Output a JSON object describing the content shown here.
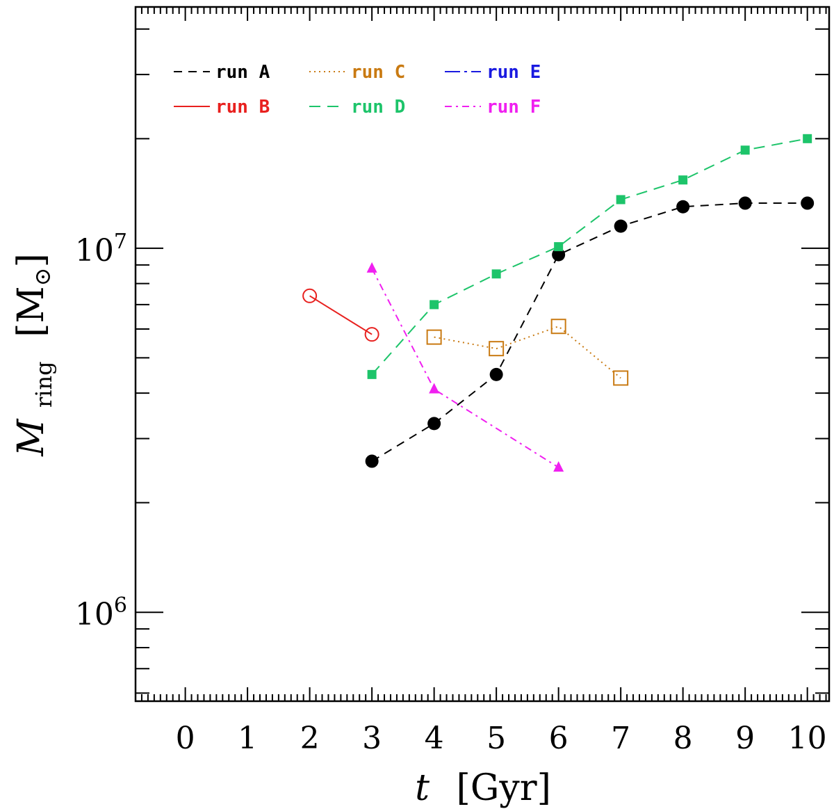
{
  "chart_data": {
    "type": "line",
    "xlabel": {
      "var": "t",
      "unit": "[Gyr]"
    },
    "ylabel": {
      "var": "M",
      "sub": "ring",
      "unit": "M",
      "unit_symbol": "⊙"
    },
    "xlim": [
      -0.8,
      10.35
    ],
    "ylim": [
      570000,
      46000000
    ],
    "yscale": "log",
    "xticks": [
      0,
      1,
      2,
      3,
      4,
      5,
      6,
      7,
      8,
      9,
      10
    ],
    "xtick_labels": [
      "0",
      "1",
      "2",
      "3",
      "4",
      "5",
      "6",
      "7",
      "8",
      "9",
      "10"
    ],
    "yticks": [
      1000000,
      10000000
    ],
    "ytick_labels": [
      {
        "base": "10",
        "exp": "6"
      },
      {
        "base": "10",
        "exp": "7"
      }
    ],
    "legend_position": "top-left",
    "series": [
      {
        "name": "run A",
        "color": "#000000",
        "dash": "12,9",
        "marker": "filled-circle",
        "x": [
          3,
          4,
          5,
          6,
          7,
          8,
          9,
          10
        ],
        "y": [
          2600000,
          3300000,
          4500000,
          9600000,
          11500000,
          13000000,
          13300000,
          13300000
        ]
      },
      {
        "name": "run B",
        "color": "#e8201e",
        "dash": "",
        "marker": "open-circle",
        "x": [
          2,
          3
        ],
        "y": [
          7400000,
          5800000
        ]
      },
      {
        "name": "run C",
        "color": "#c97a12",
        "dash": "2,5",
        "marker": "open-square",
        "x": [
          4,
          5,
          6,
          7
        ],
        "y": [
          5700000,
          5300000,
          6100000,
          4400000
        ]
      },
      {
        "name": "run D",
        "color": "#1dc46a",
        "dash": "16,10",
        "marker": "filled-square",
        "x": [
          3,
          4,
          5,
          6,
          7,
          8,
          9,
          10
        ],
        "y": [
          4500000,
          7000000,
          8500000,
          10100000,
          13600000,
          15400000,
          18600000,
          20000000
        ]
      },
      {
        "name": "run E",
        "color": "#1a1ae0",
        "dash": "22,6,4,6",
        "marker": "none",
        "x": [],
        "y": []
      },
      {
        "name": "run F",
        "color": "#f020f0",
        "dash": "10,6,3,6",
        "marker": "filled-triangle",
        "x": [
          3,
          4,
          6
        ],
        "y": [
          8800000,
          4100000,
          2500000
        ]
      }
    ]
  }
}
